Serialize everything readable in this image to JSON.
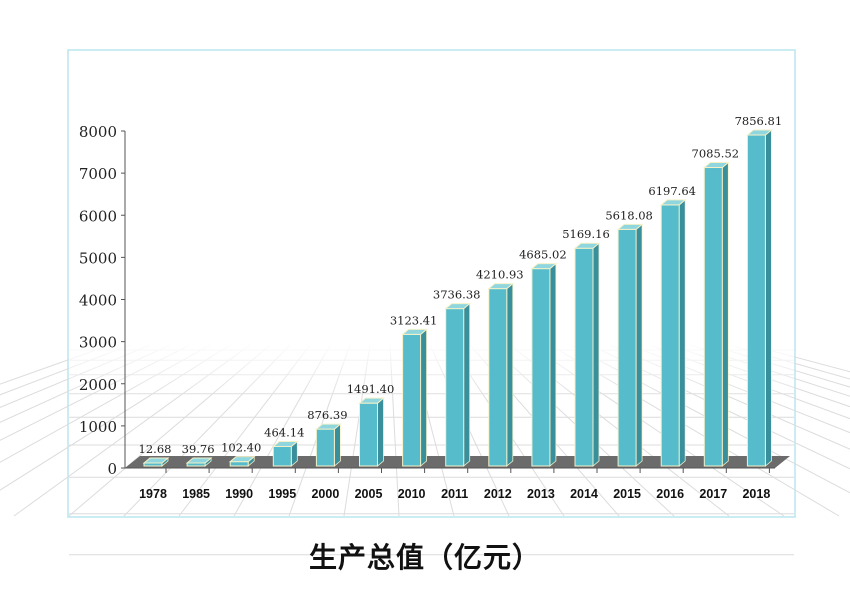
{
  "chart_data": {
    "type": "bar",
    "title": "生产总值（亿元）",
    "xlabel": "",
    "ylabel": "",
    "ylim": [
      0,
      8000
    ],
    "yticks": [
      "0",
      "1000",
      "2000",
      "3000",
      "4000",
      "5000",
      "6000",
      "7000",
      "8000"
    ],
    "categories": [
      "1978",
      "1985",
      "1990",
      "1995",
      "2000",
      "2005",
      "2010",
      "2011",
      "2012",
      "2013",
      "2014",
      "2015",
      "2016",
      "2017",
      "2018"
    ],
    "values": [
      12.68,
      39.76,
      102.4,
      464.14,
      876.39,
      1491.4,
      3123.41,
      3736.38,
      4210.93,
      4685.02,
      5169.16,
      5618.08,
      6197.64,
      7085.52,
      7856.81
    ],
    "data_labels": [
      "12.68",
      "39.76",
      "102.40",
      "464.14",
      "876.39",
      "1491.40",
      "3123.41",
      "3736.38",
      "4210.93",
      "4685.02",
      "5169.16",
      "5618.08",
      "6197.64",
      "7085.52",
      "7856.81"
    ],
    "grid": false,
    "colors": {
      "bar_front": "#56bccb",
      "bar_side": "#3a8f9c",
      "bar_top": "#8fd6df",
      "bar_edge": "#f4f1c8",
      "floor": "#6b6b6b",
      "frame": "#b9e6ee"
    }
  }
}
